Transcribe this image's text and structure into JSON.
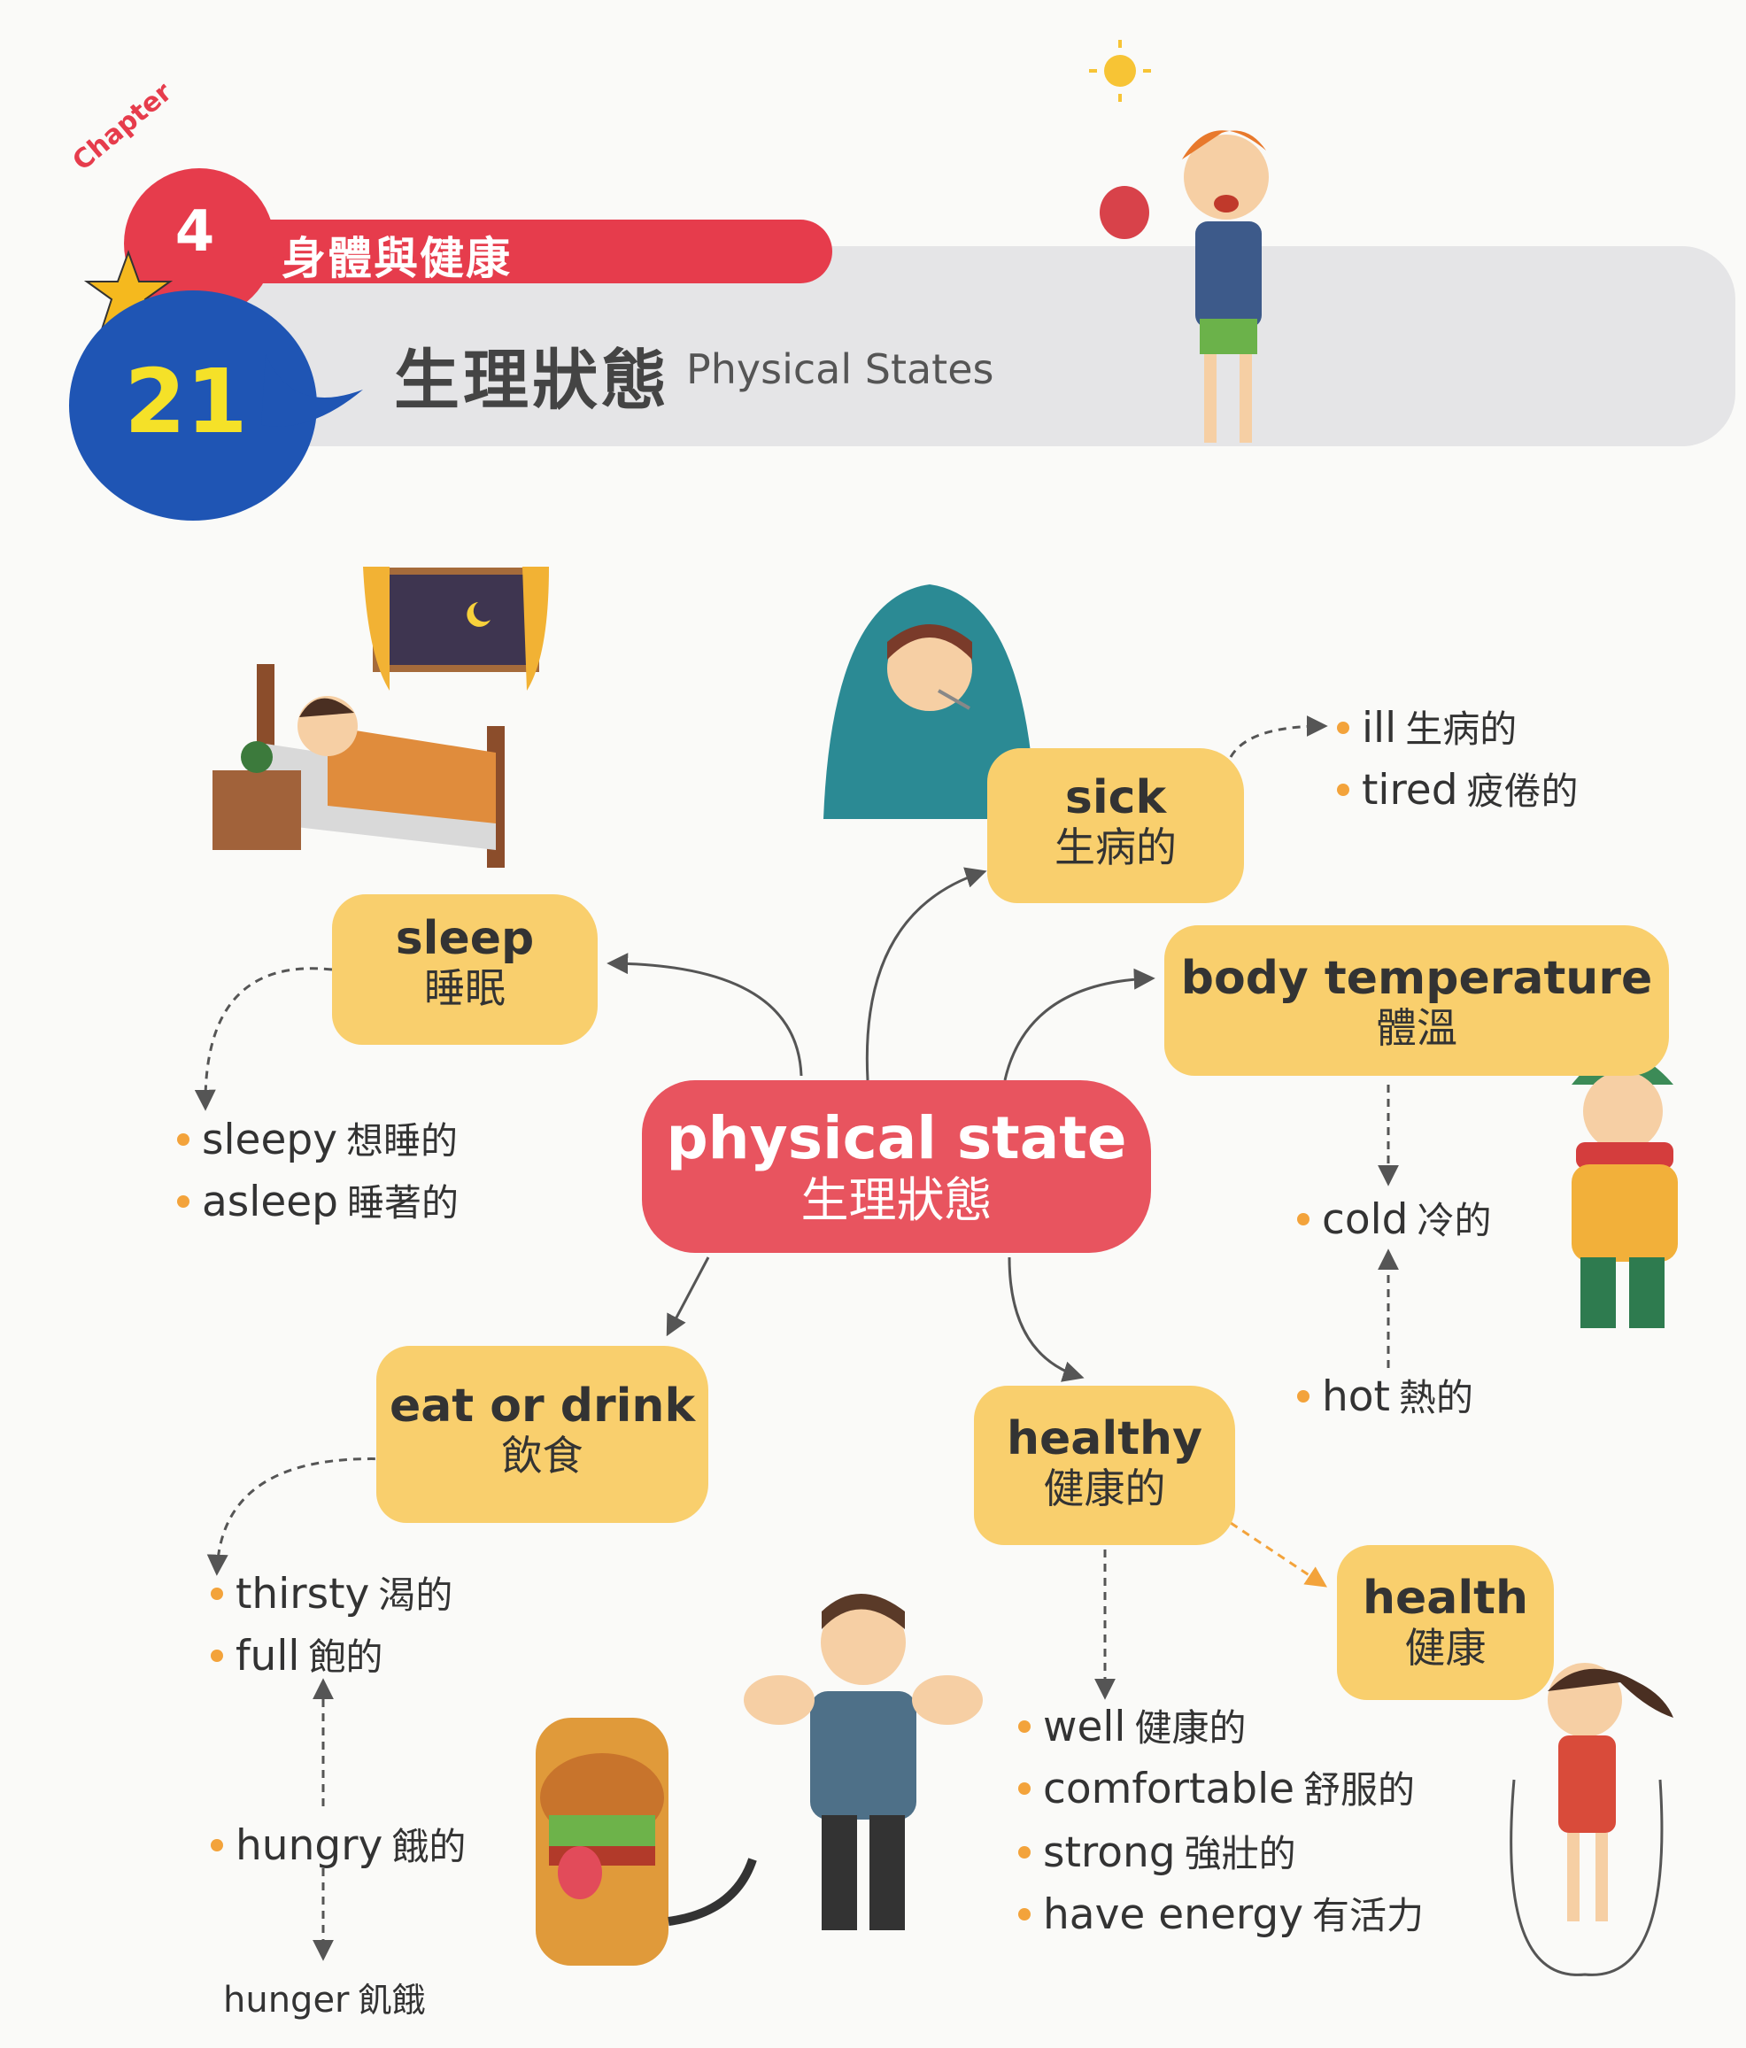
{
  "header": {
    "chapter_word": "Chapter",
    "chapter_number": "4",
    "chapter_title": "身體與健康",
    "lesson_number": "21",
    "lesson_title_zh": "生理狀態",
    "lesson_title_en": "Physical  States"
  },
  "center": {
    "en": "physical state",
    "zh": "生理狀態"
  },
  "nodes": {
    "sleep": {
      "en": "sleep",
      "zh": "睡眠"
    },
    "sick": {
      "en": "sick",
      "zh": "生病的"
    },
    "body_temperature": {
      "en": "body temperature",
      "zh": "體溫"
    },
    "eat_or_drink": {
      "en": "eat or drink",
      "zh": "飲食"
    },
    "healthy": {
      "en": "healthy",
      "zh": "健康的"
    },
    "health": {
      "en": "health",
      "zh": "健康"
    }
  },
  "words": {
    "sick": [
      {
        "en": "ill",
        "zh": "生病的"
      },
      {
        "en": "tired",
        "zh": "疲倦的"
      }
    ],
    "sleep": [
      {
        "en": "sleepy",
        "zh": "想睡的"
      },
      {
        "en": "asleep",
        "zh": "睡著的"
      }
    ],
    "temperature": [
      {
        "en": "cold",
        "zh": "冷的"
      },
      {
        "en": "hot",
        "zh": "熱的"
      }
    ],
    "eat": [
      {
        "en": "thirsty",
        "zh": "渴的"
      },
      {
        "en": "full",
        "zh": "飽的"
      },
      {
        "en": "hungry",
        "zh": "餓的"
      }
    ],
    "hunger": {
      "en": "hunger",
      "zh": "飢餓"
    },
    "healthy": [
      {
        "en": "well",
        "zh": "健康的"
      },
      {
        "en": "comfortable",
        "zh": "舒服的"
      },
      {
        "en": "strong",
        "zh": "強壯的"
      },
      {
        "en": "have energy",
        "zh": "有活力"
      }
    ]
  },
  "colors": {
    "node": "#f9cf6d",
    "center": "#e8545f",
    "chapter": "#e63c4c",
    "lesson": "#1f55b4",
    "bullet": "#f3a33b"
  }
}
